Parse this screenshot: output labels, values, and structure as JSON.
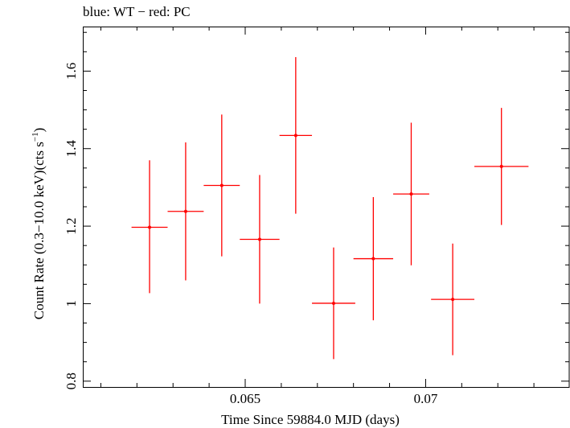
{
  "chart_data": {
    "type": "scatter",
    "title": "blue: WT − red: PC",
    "xlabel": "Time Since 59884.0 MJD (days)",
    "ylabel_main": "Count Rate (0.3−10.0 keV)(cts s",
    "ylabel_sup": "−1",
    "ylabel_close": ")",
    "xlim": [
      0.0605,
      0.074
    ],
    "ylim": [
      0.785,
      1.715
    ],
    "x_ticks": [
      0.065,
      0.07
    ],
    "x_tick_labels": [
      "0.065",
      "0.07"
    ],
    "y_ticks": [
      0.8,
      1.0,
      1.2,
      1.4,
      1.6
    ],
    "y_tick_labels": [
      "0.8",
      "1",
      "1.2",
      "1.4",
      "1.6"
    ],
    "grid": false,
    "series": [
      {
        "color": "#ff0000",
        "points": [
          {
            "x": 0.06235,
            "xerr": 0.0005,
            "y": 1.197,
            "yerr_low": 0.17,
            "yerr_high": 0.173
          },
          {
            "x": 0.06335,
            "xerr": 0.0005,
            "y": 1.238,
            "yerr_low": 0.178,
            "yerr_high": 0.178
          },
          {
            "x": 0.06435,
            "xerr": 0.0005,
            "y": 1.305,
            "yerr_low": 0.183,
            "yerr_high": 0.183
          },
          {
            "x": 0.0654,
            "xerr": 0.00055,
            "y": 1.166,
            "yerr_low": 0.166,
            "yerr_high": 0.166
          },
          {
            "x": 0.0664,
            "xerr": 0.00045,
            "y": 1.434,
            "yerr_low": 0.202,
            "yerr_high": 0.202
          },
          {
            "x": 0.06745,
            "xerr": 0.0006,
            "y": 1.001,
            "yerr_low": 0.144,
            "yerr_high": 0.144
          },
          {
            "x": 0.06855,
            "xerr": 0.00055,
            "y": 1.116,
            "yerr_low": 0.159,
            "yerr_high": 0.159
          },
          {
            "x": 0.0696,
            "xerr": 0.0005,
            "y": 1.283,
            "yerr_low": 0.184,
            "yerr_high": 0.184
          },
          {
            "x": 0.07075,
            "xerr": 0.0006,
            "y": 1.011,
            "yerr_low": 0.144,
            "yerr_high": 0.144
          },
          {
            "x": 0.0721,
            "xerr": 0.00075,
            "y": 1.354,
            "yerr_low": 0.151,
            "yerr_high": 0.151
          }
        ]
      }
    ]
  }
}
